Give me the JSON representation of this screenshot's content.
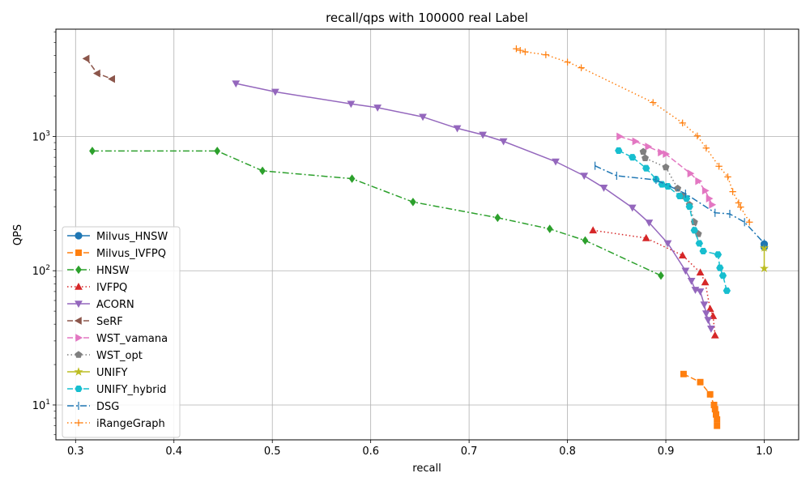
{
  "chart_data": {
    "type": "line",
    "title": "recall/qps with 100000 real Label",
    "xlabel": "recall",
    "ylabel": "QPS",
    "xlim": [
      0.28,
      1.035
    ],
    "ylim": [
      5.5,
      6300
    ],
    "yscale": "log",
    "grid": true,
    "legend_position": "lower-left",
    "x_ticks": [
      {
        "v": 0.3,
        "label": "0.3"
      },
      {
        "v": 0.4,
        "label": "0.4"
      },
      {
        "v": 0.5,
        "label": "0.5"
      },
      {
        "v": 0.6,
        "label": "0.6"
      },
      {
        "v": 0.7,
        "label": "0.7"
      },
      {
        "v": 0.8,
        "label": "0.8"
      },
      {
        "v": 0.9,
        "label": "0.9"
      },
      {
        "v": 1.0,
        "label": "1.0"
      }
    ],
    "y_ticks": [
      {
        "v": 10,
        "base": "10",
        "exp": "1"
      },
      {
        "v": 100,
        "base": "10",
        "exp": "2"
      },
      {
        "v": 1000,
        "base": "10",
        "exp": "3"
      }
    ],
    "series": [
      {
        "name": "Milvus_HNSW",
        "color": "#1f77b4",
        "dash": "",
        "marker": "circle",
        "points": [
          [
            1.0,
            158
          ],
          [
            1.0,
            150
          ]
        ]
      },
      {
        "name": "Milvus_IVFPQ",
        "color": "#ff7f0e",
        "dash": "7,3",
        "marker": "square",
        "points": [
          [
            0.918,
            17
          ],
          [
            0.935,
            14.8
          ],
          [
            0.945,
            12
          ],
          [
            0.949,
            10
          ],
          [
            0.95,
            9.3
          ],
          [
            0.951,
            8.5
          ],
          [
            0.952,
            7.8
          ],
          [
            0.952,
            7
          ]
        ]
      },
      {
        "name": "HNSW",
        "color": "#2ca02c",
        "dash": "8,3,2,3",
        "marker": "diamond",
        "points": [
          [
            0.317,
            780
          ],
          [
            0.444,
            780
          ],
          [
            0.49,
            555
          ],
          [
            0.581,
            485
          ],
          [
            0.643,
            325
          ],
          [
            0.729,
            248
          ],
          [
            0.782,
            205
          ],
          [
            0.818,
            168
          ],
          [
            0.895,
            92
          ]
        ]
      },
      {
        "name": "IVFPQ",
        "color": "#d62728",
        "dash": "1.5,3",
        "marker": "triangle-up",
        "points": [
          [
            0.826,
            200
          ],
          [
            0.88,
            175
          ],
          [
            0.917,
            130
          ],
          [
            0.935,
            97
          ],
          [
            0.94,
            82
          ],
          [
            0.945,
            52
          ],
          [
            0.948,
            46
          ],
          [
            0.95,
            33
          ]
        ]
      },
      {
        "name": "ACORN",
        "color": "#9467bd",
        "dash": "",
        "marker": "triangle-down",
        "points": [
          [
            0.463,
            2480
          ],
          [
            0.503,
            2150
          ],
          [
            0.58,
            1750
          ],
          [
            0.607,
            1640
          ],
          [
            0.653,
            1400
          ],
          [
            0.688,
            1150
          ],
          [
            0.714,
            1030
          ],
          [
            0.735,
            920
          ],
          [
            0.788,
            650
          ],
          [
            0.817,
            510
          ],
          [
            0.837,
            415
          ],
          [
            0.866,
            295
          ],
          [
            0.883,
            228
          ],
          [
            0.902,
            160
          ],
          [
            0.92,
            100
          ],
          [
            0.926,
            84
          ],
          [
            0.93,
            72
          ],
          [
            0.935,
            70
          ],
          [
            0.939,
            56
          ],
          [
            0.941,
            48
          ],
          [
            0.943,
            43
          ],
          [
            0.946,
            37
          ]
        ]
      },
      {
        "name": "SeRF",
        "color": "#8c564b",
        "dash": "7,3",
        "marker": "triangle-left",
        "points": [
          [
            0.311,
            3800
          ],
          [
            0.322,
            2950
          ],
          [
            0.337,
            2680
          ]
        ]
      },
      {
        "name": "WST_vamana",
        "color": "#e377c2",
        "dash": "7,3",
        "marker": "triangle-right",
        "points": [
          [
            0.853,
            1000
          ],
          [
            0.869,
            920
          ],
          [
            0.882,
            840
          ],
          [
            0.895,
            760
          ],
          [
            0.9,
            740
          ],
          [
            0.925,
            530
          ],
          [
            0.933,
            465
          ],
          [
            0.94,
            395
          ],
          [
            0.944,
            345
          ],
          [
            0.947,
            310
          ]
        ]
      },
      {
        "name": "WST_opt",
        "color": "#7f7f7f",
        "dash": "1.5,3",
        "marker": "pentagon",
        "points": [
          [
            0.877,
            770
          ],
          [
            0.879,
            690
          ],
          [
            0.9,
            590
          ],
          [
            0.912,
            410
          ],
          [
            0.917,
            360
          ],
          [
            0.924,
            310
          ],
          [
            0.929,
            230
          ],
          [
            0.933,
            188
          ]
        ]
      },
      {
        "name": "UNIFY",
        "color": "#bcbd22",
        "dash": "",
        "marker": "star",
        "points": [
          [
            1.0,
            148
          ],
          [
            1.0,
            104
          ]
        ]
      },
      {
        "name": "UNIFY_hybrid",
        "color": "#17becf",
        "dash": "7,3",
        "marker": "octagon",
        "points": [
          [
            0.852,
            785
          ],
          [
            0.866,
            700
          ],
          [
            0.88,
            580
          ],
          [
            0.89,
            480
          ],
          [
            0.896,
            440
          ],
          [
            0.902,
            425
          ],
          [
            0.914,
            360
          ],
          [
            0.921,
            345
          ],
          [
            0.924,
            300
          ],
          [
            0.929,
            200
          ],
          [
            0.934,
            160
          ],
          [
            0.938,
            140
          ],
          [
            0.953,
            132
          ],
          [
            0.955,
            105
          ],
          [
            0.958,
            92
          ],
          [
            0.962,
            71
          ]
        ]
      },
      {
        "name": "DSG",
        "color": "#1f77b4",
        "dash": "8,3,2,3",
        "marker": "vline",
        "points": [
          [
            0.828,
            605
          ],
          [
            0.85,
            510
          ],
          [
            0.89,
            475
          ],
          [
            0.92,
            375
          ],
          [
            0.95,
            270
          ],
          [
            0.965,
            265
          ],
          [
            0.98,
            230
          ],
          [
            1.0,
            160
          ]
        ]
      },
      {
        "name": "iRangeGraph",
        "color": "#ff7f0e",
        "dash": "1.5,3",
        "marker": "plus",
        "points": [
          [
            0.748,
            4500
          ],
          [
            0.752,
            4380
          ],
          [
            0.757,
            4270
          ],
          [
            0.778,
            4060
          ],
          [
            0.8,
            3580
          ],
          [
            0.814,
            3250
          ],
          [
            0.887,
            1790
          ],
          [
            0.917,
            1260
          ],
          [
            0.932,
            1010
          ],
          [
            0.941,
            820
          ],
          [
            0.954,
            600
          ],
          [
            0.963,
            500
          ],
          [
            0.968,
            388
          ],
          [
            0.974,
            320
          ],
          [
            0.976,
            298
          ],
          [
            0.985,
            230
          ]
        ]
      }
    ]
  }
}
